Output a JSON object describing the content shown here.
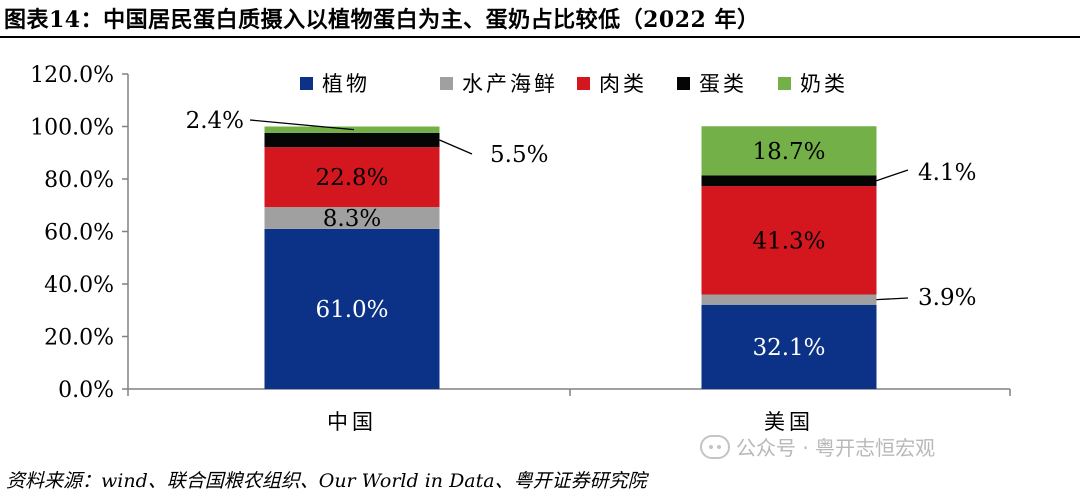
{
  "title": "图表14：中国居民蛋白质摄入以植物蛋白为主、蛋奶占比较低（2022 年）",
  "source": "资料来源：wind、联合国粮农组织、Our World in Data、粤开证券研究院",
  "watermark": "公众号 · 粤开志恒宏观",
  "chart_data": {
    "type": "bar",
    "stacked": true,
    "categories": [
      "中国",
      "美国"
    ],
    "ylim": [
      0,
      120
    ],
    "yticks": [
      "0.0%",
      "20.0%",
      "40.0%",
      "60.0%",
      "80.0%",
      "100.0%",
      "120.0%"
    ],
    "grid": false,
    "legend_position": "top-right",
    "series": [
      {
        "name": "植物",
        "color": "#0b3286",
        "values": [
          61.0,
          32.1
        ],
        "labels": [
          "61.0%",
          "32.1%"
        ]
      },
      {
        "name": "水产海鲜",
        "color": "#a0a0a0",
        "values": [
          8.3,
          3.9
        ],
        "labels": [
          "8.3%",
          "3.9%"
        ]
      },
      {
        "name": "肉类",
        "color": "#d4161f",
        "values": [
          22.8,
          41.3
        ],
        "labels": [
          "22.8%",
          "41.3%"
        ]
      },
      {
        "name": "蛋类",
        "color": "#050505",
        "values": [
          5.5,
          4.1
        ],
        "labels": [
          "5.5%",
          "4.1%"
        ]
      },
      {
        "name": "奶类",
        "color": "#74b048",
        "values": [
          2.4,
          18.7
        ],
        "labels": [
          "2.4%",
          "18.7%"
        ]
      }
    ]
  }
}
